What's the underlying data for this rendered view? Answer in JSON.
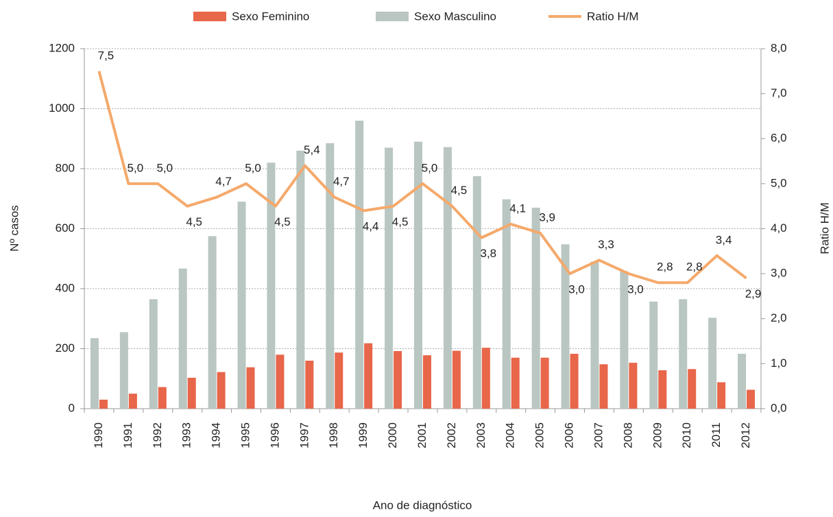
{
  "chart_data": {
    "type": "bar_line",
    "x_label": "Ano de diagnóstico",
    "y_label": "Nº casos",
    "y2_label": "Ratio H/M",
    "categories": [
      "1990",
      "1991",
      "1992",
      "1993",
      "1994",
      "1995",
      "1996",
      "1997",
      "1998",
      "1999",
      "2000",
      "2001",
      "2002",
      "2003",
      "2004",
      "2005",
      "2006",
      "2007",
      "2008",
      "2009",
      "2010",
      "2011",
      "2012"
    ],
    "series": [
      {
        "name": "Sexo Feminino",
        "color": "#e8664a",
        "type": "bar",
        "values": [
          30,
          50,
          72,
          103,
          122,
          138,
          180,
          160,
          187,
          218,
          192,
          178,
          193,
          203,
          170,
          170,
          183,
          148,
          153,
          128,
          132,
          88,
          63
        ]
      },
      {
        "name": "Sexo Masculino",
        "color": "#b9c6c1",
        "type": "bar",
        "values": [
          235,
          255,
          365,
          467,
          575,
          690,
          820,
          860,
          885,
          960,
          870,
          890,
          872,
          775,
          698,
          670,
          548,
          490,
          458,
          357,
          365,
          303,
          183
        ]
      },
      {
        "name": "Ratio H/M",
        "color": "#f4a96b",
        "type": "line",
        "axis": "y2",
        "values": [
          7.5,
          5.0,
          5.0,
          4.5,
          4.7,
          5.0,
          4.5,
          5.4,
          4.7,
          4.4,
          4.5,
          5.0,
          4.5,
          3.8,
          4.1,
          3.9,
          3.0,
          3.3,
          3.0,
          2.8,
          2.8,
          3.4,
          2.9
        ],
        "value_labels": [
          "7,5",
          "5,0",
          "5,0",
          "4,5",
          "4,7",
          "5,0",
          "4,5",
          "5,4",
          "4,7",
          "4,4",
          "4,5",
          "5,0",
          "4,5",
          "3,8",
          "4,1",
          "3,9",
          "3,0",
          "3,3",
          "3,0",
          "2,8",
          "2,8",
          "3,4",
          "2,9"
        ]
      }
    ],
    "ylim": [
      0,
      1200
    ],
    "yticks": [
      0,
      200,
      400,
      600,
      800,
      1000,
      1200
    ],
    "y2lim": [
      0,
      8
    ],
    "y2ticks": [
      {
        "value": 0,
        "label": "0,0"
      },
      {
        "value": 1,
        "label": "1,0"
      },
      {
        "value": 2,
        "label": "2,0"
      },
      {
        "value": 3,
        "label": "3,0"
      },
      {
        "value": 4,
        "label": "4,0"
      },
      {
        "value": 5,
        "label": "5,0"
      },
      {
        "value": 6,
        "label": "6,0"
      },
      {
        "value": 7,
        "label": "7,0"
      },
      {
        "value": 8,
        "label": "8,0"
      }
    ],
    "grid": true,
    "legend": "top"
  }
}
